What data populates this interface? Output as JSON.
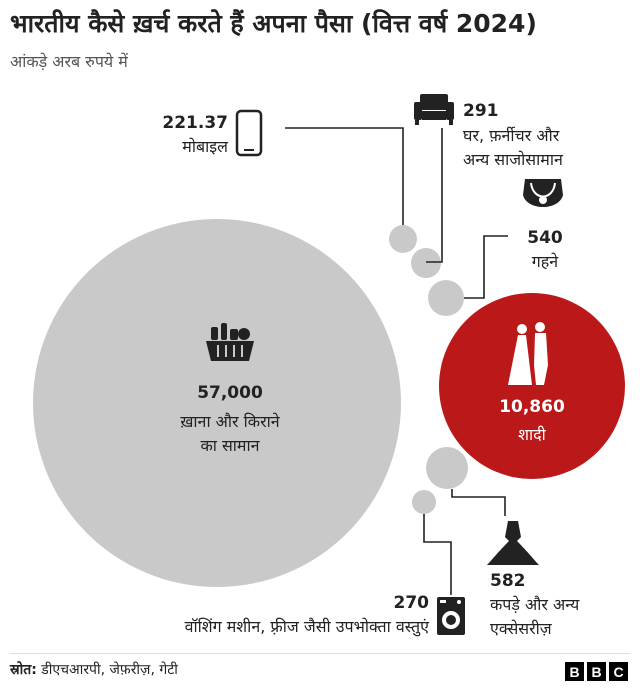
{
  "title": "भारतीय कैसे ख़र्च करते हैं अपना पैसा (वित्त वर्ष 2024)",
  "subtitle": "आंकड़े अरब रुपये में",
  "chart_data": {
    "type": "bubble",
    "title": "भारतीय कैसे ख़र्च करते हैं अपना पैसा (वित्त वर्ष 2024)",
    "unit": "आंकड़े अरब रुपये में",
    "items": [
      {
        "id": "food",
        "value": 57000,
        "value_label": "57,000",
        "label_lines": [
          "ख़ाना और किराने",
          "का सामान"
        ],
        "icon": "grocery-basket-icon",
        "color": "#c9c9c9"
      },
      {
        "id": "wedding",
        "value": 10860,
        "value_label": "10,860",
        "label_lines": [
          "शादी"
        ],
        "icon": "bride-groom-icon",
        "color": "#bb1919"
      },
      {
        "id": "mobile",
        "value": 221.37,
        "value_label": "221.37",
        "label_lines": [
          "मोबाइल"
        ],
        "icon": "mobile-phone-icon",
        "color": "#c9c9c9"
      },
      {
        "id": "furniture",
        "value": 291,
        "value_label": "291",
        "label_lines": [
          "घर, फ़र्नीचर और",
          "अन्य साजोसामान"
        ],
        "icon": "sofa-icon",
        "color": "#c9c9c9"
      },
      {
        "id": "jewellery",
        "value": 540,
        "value_label": "540",
        "label_lines": [
          "गहने"
        ],
        "icon": "necklace-icon",
        "color": "#c9c9c9"
      },
      {
        "id": "clothing",
        "value": 582,
        "value_label": "582",
        "label_lines": [
          "कपड़े और अन्य",
          "एक्सेसरीज़"
        ],
        "icon": "dress-icon",
        "color": "#c9c9c9"
      },
      {
        "id": "appliances",
        "value": 270,
        "value_label": "270",
        "label_lines": [
          "वॉशिंग मशीन, फ़्रीज जैसी उपभोक्ता वस्तुएं"
        ],
        "icon": "washing-machine-icon",
        "color": "#c9c9c9"
      }
    ]
  },
  "footer": {
    "source_label": "स्रोत:",
    "source_text": "डीएचआरपी, जेफ़रीज़, गेटी",
    "logo_letters": [
      "B",
      "B",
      "C"
    ]
  }
}
